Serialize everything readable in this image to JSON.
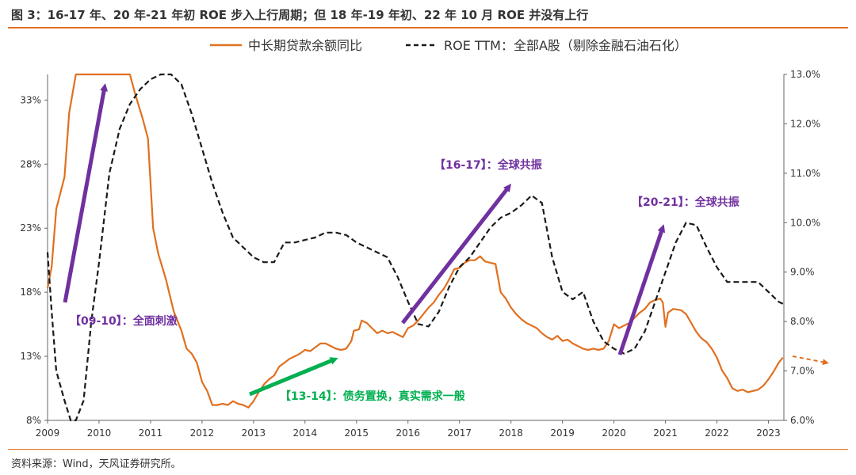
{
  "header": {
    "title": "图 3：16-17 年、20 年-21 年初  ROE 步入上行周期；但 18 年-19 年初、22 年 10 月 ROE 并没有上行"
  },
  "footer": {
    "source": "资料来源：Wind，天风证券研究所。"
  },
  "colors": {
    "accent": "#e07020",
    "loan": "#e07020",
    "roe": "#1a1a1a",
    "purple": "#7030a0",
    "green": "#00b050"
  },
  "chart_data": {
    "type": "line",
    "x_ticks": [
      "2009",
      "2010",
      "2011",
      "2012",
      "2013",
      "2014",
      "2015",
      "2016",
      "2017",
      "2018",
      "2019",
      "2020",
      "2021",
      "2022",
      "2023"
    ],
    "left_axis": {
      "ticks": [
        "8%",
        "13%",
        "18%",
        "23%",
        "28%",
        "33%"
      ],
      "range": [
        8,
        35
      ]
    },
    "right_axis": {
      "ticks": [
        "6.0%",
        "7.0%",
        "8.0%",
        "9.0%",
        "10.0%",
        "11.0%",
        "12.0%",
        "13.0%"
      ],
      "range": [
        6,
        13
      ]
    },
    "legend": {
      "position": "top"
    },
    "series": [
      {
        "name": "中长期贷款余额同比",
        "axis": "left",
        "style": "solid",
        "points": [
          [
            2009.0,
            18.3
          ],
          [
            2009.08,
            20
          ],
          [
            2009.17,
            24.5
          ],
          [
            2009.33,
            27
          ],
          [
            2009.42,
            32
          ],
          [
            2009.55,
            35
          ],
          [
            2010.6,
            35
          ],
          [
            2010.7,
            33.5
          ],
          [
            2010.85,
            31.5
          ],
          [
            2010.95,
            30
          ],
          [
            2011.05,
            23
          ],
          [
            2011.15,
            21
          ],
          [
            2011.3,
            19
          ],
          [
            2011.45,
            16.5
          ],
          [
            2011.6,
            15
          ],
          [
            2011.7,
            13.6
          ],
          [
            2011.8,
            13.2
          ],
          [
            2011.9,
            12.5
          ],
          [
            2012.0,
            11
          ],
          [
            2012.1,
            10.3
          ],
          [
            2012.2,
            9.2
          ],
          [
            2012.3,
            9.2
          ],
          [
            2012.4,
            9.3
          ],
          [
            2012.5,
            9.2
          ],
          [
            2012.6,
            9.5
          ],
          [
            2012.7,
            9.3
          ],
          [
            2012.8,
            9.2
          ],
          [
            2012.9,
            9
          ],
          [
            2013.0,
            9.5
          ],
          [
            2013.1,
            10.2
          ],
          [
            2013.2,
            10.8
          ],
          [
            2013.3,
            11.2
          ],
          [
            2013.4,
            11.5
          ],
          [
            2013.5,
            12.2
          ],
          [
            2013.6,
            12.5
          ],
          [
            2013.7,
            12.8
          ],
          [
            2013.8,
            13
          ],
          [
            2013.9,
            13.2
          ],
          [
            2014.0,
            13.5
          ],
          [
            2014.1,
            13.4
          ],
          [
            2014.2,
            13.7
          ],
          [
            2014.3,
            14
          ],
          [
            2014.4,
            14
          ],
          [
            2014.5,
            13.8
          ],
          [
            2014.6,
            13.6
          ],
          [
            2014.7,
            13.5
          ],
          [
            2014.8,
            13.6
          ],
          [
            2014.9,
            14.2
          ],
          [
            2014.95,
            15
          ],
          [
            2015.05,
            15.1
          ],
          [
            2015.1,
            15.8
          ],
          [
            2015.2,
            15.6
          ],
          [
            2015.3,
            15.2
          ],
          [
            2015.4,
            14.8
          ],
          [
            2015.5,
            15
          ],
          [
            2015.6,
            14.8
          ],
          [
            2015.7,
            14.9
          ],
          [
            2015.8,
            14.7
          ],
          [
            2015.9,
            14.5
          ],
          [
            2016.0,
            15.2
          ],
          [
            2016.1,
            15.4
          ],
          [
            2016.2,
            15.8
          ],
          [
            2016.3,
            16.3
          ],
          [
            2016.4,
            16.8
          ],
          [
            2016.5,
            17.2
          ],
          [
            2016.6,
            17.8
          ],
          [
            2016.7,
            18.3
          ],
          [
            2016.8,
            19
          ],
          [
            2016.9,
            19.8
          ],
          [
            2017.0,
            19.9
          ],
          [
            2017.1,
            20.3
          ],
          [
            2017.2,
            20.5
          ],
          [
            2017.3,
            20.5
          ],
          [
            2017.4,
            20.8
          ],
          [
            2017.5,
            20.4
          ],
          [
            2017.6,
            20.3
          ],
          [
            2017.7,
            20.2
          ],
          [
            2017.8,
            18
          ],
          [
            2017.9,
            17.5
          ],
          [
            2018.0,
            16.8
          ],
          [
            2018.1,
            16.3
          ],
          [
            2018.2,
            15.9
          ],
          [
            2018.3,
            15.6
          ],
          [
            2018.4,
            15.4
          ],
          [
            2018.5,
            15.2
          ],
          [
            2018.6,
            14.8
          ],
          [
            2018.7,
            14.5
          ],
          [
            2018.8,
            14.3
          ],
          [
            2018.9,
            14.6
          ],
          [
            2019.0,
            14.2
          ],
          [
            2019.1,
            14.3
          ],
          [
            2019.2,
            14
          ],
          [
            2019.3,
            13.8
          ],
          [
            2019.4,
            13.6
          ],
          [
            2019.5,
            13.5
          ],
          [
            2019.6,
            13.6
          ],
          [
            2019.7,
            13.5
          ],
          [
            2019.8,
            13.6
          ],
          [
            2019.9,
            14.2
          ],
          [
            2020.0,
            15.5
          ],
          [
            2020.1,
            15.2
          ],
          [
            2020.2,
            15.4
          ],
          [
            2020.3,
            15.6
          ],
          [
            2020.4,
            16
          ],
          [
            2020.5,
            16.4
          ],
          [
            2020.6,
            16.7
          ],
          [
            2020.7,
            17.2
          ],
          [
            2020.8,
            17.4
          ],
          [
            2020.9,
            17.5
          ],
          [
            2020.95,
            17.2
          ],
          [
            2021.0,
            15.3
          ],
          [
            2021.05,
            16.4
          ],
          [
            2021.15,
            16.7
          ],
          [
            2021.3,
            16.6
          ],
          [
            2021.4,
            16.3
          ],
          [
            2021.5,
            15.6
          ],
          [
            2021.6,
            14.9
          ],
          [
            2021.7,
            14.4
          ],
          [
            2021.8,
            14.1
          ],
          [
            2021.9,
            13.6
          ],
          [
            2022.0,
            12.9
          ],
          [
            2022.1,
            11.9
          ],
          [
            2022.2,
            11.3
          ],
          [
            2022.3,
            10.5
          ],
          [
            2022.4,
            10.3
          ],
          [
            2022.5,
            10.4
          ],
          [
            2022.6,
            10.2
          ],
          [
            2022.7,
            10.3
          ],
          [
            2022.8,
            10.4
          ],
          [
            2022.9,
            10.7
          ],
          [
            2023.0,
            11.2
          ],
          [
            2023.1,
            11.8
          ],
          [
            2023.2,
            12.5
          ],
          [
            2023.28,
            12.9
          ]
        ]
      },
      {
        "name": "ROE TTM：全部A股（剔除金融石油石化）",
        "axis": "right",
        "style": "dashed",
        "points": [
          [
            2009.0,
            9.4
          ],
          [
            2009.08,
            8.2
          ],
          [
            2009.17,
            7
          ],
          [
            2009.33,
            6.4
          ],
          [
            2009.45,
            6
          ],
          [
            2009.55,
            6
          ],
          [
            2009.7,
            6.4
          ],
          [
            2009.85,
            8
          ],
          [
            2010.0,
            9.2
          ],
          [
            2010.2,
            11
          ],
          [
            2010.4,
            11.9
          ],
          [
            2010.6,
            12.4
          ],
          [
            2010.8,
            12.7
          ],
          [
            2011.0,
            12.9
          ],
          [
            2011.2,
            13
          ],
          [
            2011.4,
            13
          ],
          [
            2011.6,
            12.8
          ],
          [
            2011.8,
            12.2
          ],
          [
            2012.0,
            11.5
          ],
          [
            2012.2,
            10.8
          ],
          [
            2012.4,
            10.2
          ],
          [
            2012.6,
            9.7
          ],
          [
            2012.8,
            9.5
          ],
          [
            2013.0,
            9.3
          ],
          [
            2013.2,
            9.2
          ],
          [
            2013.4,
            9.2
          ],
          [
            2013.6,
            9.6
          ],
          [
            2013.8,
            9.6
          ],
          [
            2014.0,
            9.65
          ],
          [
            2014.2,
            9.7
          ],
          [
            2014.4,
            9.8
          ],
          [
            2014.6,
            9.8
          ],
          [
            2014.8,
            9.75
          ],
          [
            2015.0,
            9.6
          ],
          [
            2015.2,
            9.5
          ],
          [
            2015.4,
            9.4
          ],
          [
            2015.6,
            9.3
          ],
          [
            2015.8,
            8.9
          ],
          [
            2016.0,
            8.4
          ],
          [
            2016.2,
            7.95
          ],
          [
            2016.4,
            7.9
          ],
          [
            2016.6,
            8.2
          ],
          [
            2016.8,
            8.7
          ],
          [
            2017.0,
            9.1
          ],
          [
            2017.2,
            9.3
          ],
          [
            2017.4,
            9.6
          ],
          [
            2017.6,
            9.9
          ],
          [
            2017.8,
            10.1
          ],
          [
            2018.0,
            10.2
          ],
          [
            2018.2,
            10.35
          ],
          [
            2018.4,
            10.55
          ],
          [
            2018.6,
            10.4
          ],
          [
            2018.8,
            9.3
          ],
          [
            2019.0,
            8.6
          ],
          [
            2019.2,
            8.45
          ],
          [
            2019.4,
            8.6
          ],
          [
            2019.6,
            8
          ],
          [
            2019.8,
            7.6
          ],
          [
            2020.0,
            7.45
          ],
          [
            2020.2,
            7.35
          ],
          [
            2020.4,
            7.45
          ],
          [
            2020.6,
            7.8
          ],
          [
            2020.8,
            8.4
          ],
          [
            2021.0,
            9
          ],
          [
            2021.2,
            9.6
          ],
          [
            2021.4,
            10
          ],
          [
            2021.6,
            9.95
          ],
          [
            2021.8,
            9.5
          ],
          [
            2022.0,
            9.1
          ],
          [
            2022.2,
            8.8
          ],
          [
            2022.4,
            8.8
          ],
          [
            2022.6,
            8.8
          ],
          [
            2022.8,
            8.8
          ],
          [
            2023.0,
            8.6
          ],
          [
            2023.2,
            8.4
          ],
          [
            2023.3,
            8.35
          ]
        ]
      }
    ],
    "annotations": [
      {
        "text": "【09-10】：全面刺激",
        "color": "purple"
      },
      {
        "text": "【13-14】：债务置换，真实需求一般",
        "color": "green"
      },
      {
        "text": "【16-17】：全球共振",
        "color": "purple"
      },
      {
        "text": "【20-21】：全球共振",
        "color": "purple"
      }
    ]
  }
}
